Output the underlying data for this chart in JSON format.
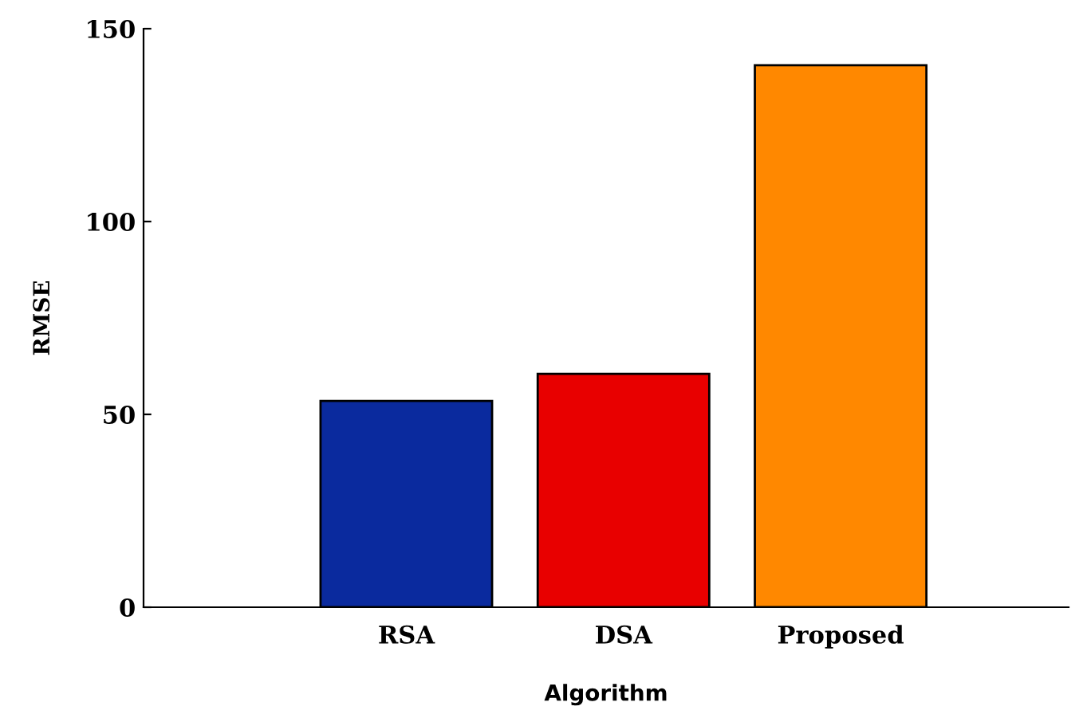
{
  "chart_data": {
    "type": "bar",
    "xlabel": "Algorithm",
    "ylabel": "RMSE",
    "categories": [
      "RSA",
      "DSA",
      "Proposed"
    ],
    "values": [
      53.5,
      60.5,
      140.5
    ],
    "colors": [
      "#0a2a9e",
      "#e80000",
      "#ff8800"
    ],
    "ylim": [
      0,
      150
    ],
    "yticks": [
      0,
      50,
      100,
      150
    ],
    "grid": false,
    "legend": false
  }
}
